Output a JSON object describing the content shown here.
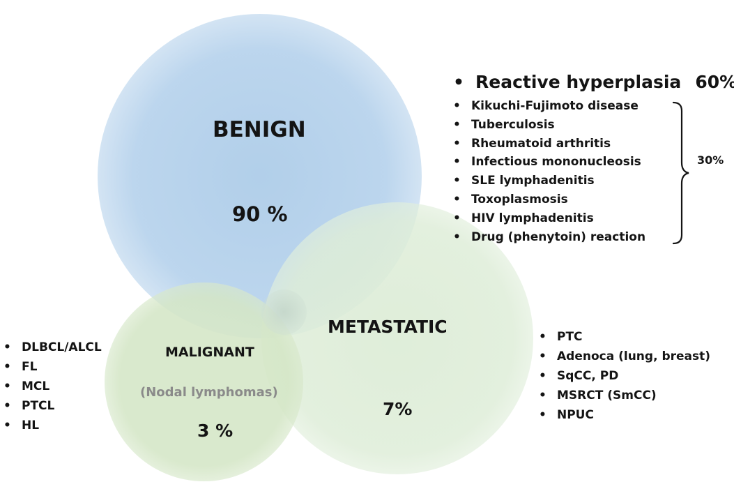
{
  "benign": {
    "title": "BENIGN",
    "percent": "90 %"
  },
  "metastatic": {
    "title": "METASTATIC",
    "percent": "7%"
  },
  "malignant": {
    "title": "MALIGNANT",
    "subtitle": "(Nodal lymphomas)",
    "percent": "3 %"
  },
  "bullet": "•",
  "reactive": {
    "label": "Reactive hyperplasia",
    "percent": "60%"
  },
  "benign_causes": [
    "Kikuchi-Fujimoto disease",
    "Tuberculosis",
    "Rheumatoid arthritis",
    "Infectious mononucleosis",
    "SLE lymphadenitis",
    "Toxoplasmosis",
    "HIV lymphadenitis",
    "Drug (phenytoin) reaction"
  ],
  "benign_causes_percent": "30%",
  "lymphoma_types": [
    "DLBCL/ALCL",
    "FL",
    "MCL",
    "PTCL",
    "HL"
  ],
  "metastatic_types": [
    "PTC",
    "Adenoca (lung, breast)",
    "SqCC, PD",
    "MSRCT (SmCC)",
    "NPUC"
  ],
  "colors": {
    "benign_circle": "#b6d2ec",
    "metastatic_circle": "#deedd8",
    "malignant_circle": "#d4e6c6",
    "subtitle_gray": "#8a8a8a"
  }
}
